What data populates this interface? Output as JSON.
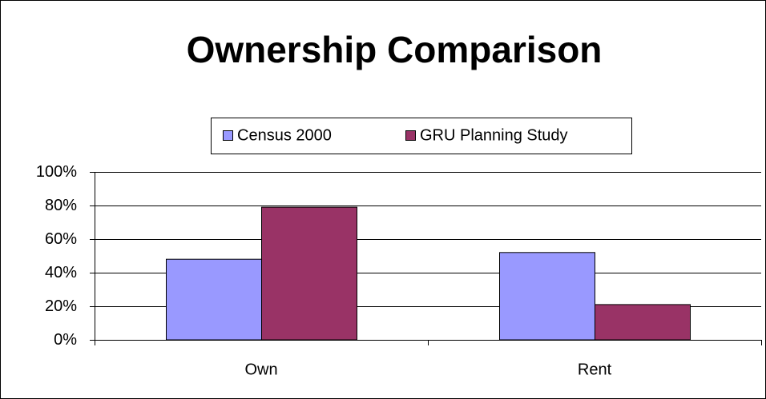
{
  "chart_data": {
    "type": "bar",
    "title": "Ownership Comparison",
    "categories": [
      "Own",
      "Rent"
    ],
    "series": [
      {
        "name": "Census 2000",
        "color": "#9999ff",
        "values": [
          48,
          52
        ]
      },
      {
        "name": "GRU Planning Study",
        "color": "#993366",
        "values": [
          79,
          21
        ]
      }
    ],
    "ylim": [
      0,
      100
    ],
    "yticks": [
      {
        "value": 0,
        "label": "0%"
      },
      {
        "value": 20,
        "label": "20%"
      },
      {
        "value": 40,
        "label": "40%"
      },
      {
        "value": 60,
        "label": "60%"
      },
      {
        "value": 80,
        "label": "80%"
      },
      {
        "value": 100,
        "label": "100%"
      }
    ],
    "grid": true,
    "legend": "top"
  }
}
